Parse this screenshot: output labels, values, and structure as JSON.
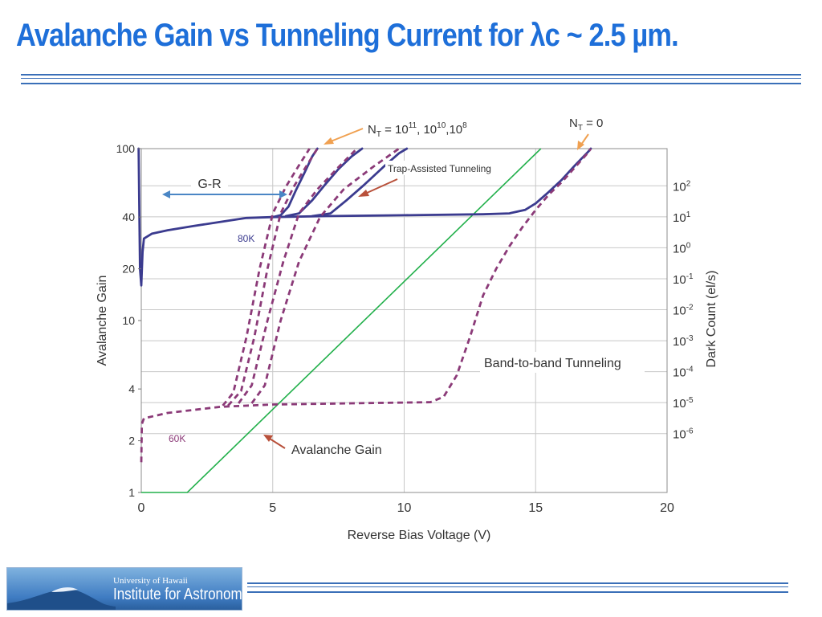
{
  "slide": {
    "title": "Avalanche Gain vs Tunneling Current for λc ~ 2.5 µm.",
    "logo": {
      "line1": "University of Hawaii",
      "line2": "Institute for Astronomy"
    }
  },
  "colors": {
    "title": "#1e6fd9",
    "curve_80k": "#3b3b8f",
    "curve_60k": "#8b3a78",
    "tunneling_line": "#22b04b",
    "arrow_blue": "#4a86c5",
    "arrow_orange": "#f0a050",
    "arrow_red": "#b8503a"
  },
  "chart_data": {
    "type": "line",
    "xlabel": "Reverse Bias Voltage (V)",
    "ylabel": "Avalanche Gain",
    "y2label": "Dark Count (el/s)",
    "xlim": [
      0,
      20
    ],
    "ylim": [
      1,
      100
    ],
    "yscale": "log",
    "y2lim": [
      -7.9,
      3.2
    ],
    "y2scale": "log",
    "grid": true,
    "xticks": [
      0,
      5,
      10,
      15,
      20
    ],
    "yticks": [
      1,
      2,
      4,
      10,
      20,
      40,
      100
    ],
    "y2ticks": [
      {
        "base": "10",
        "exp": "-6",
        "value": -6
      },
      {
        "base": "10",
        "exp": "-5",
        "value": -5
      },
      {
        "base": "10",
        "exp": "-4",
        "value": -4
      },
      {
        "base": "10",
        "exp": "-3",
        "value": -3
      },
      {
        "base": "10",
        "exp": "-2",
        "value": -2
      },
      {
        "base": "10",
        "exp": "-1",
        "value": -1
      },
      {
        "base": "10",
        "exp": "0",
        "value": 0
      },
      {
        "base": "10",
        "exp": "1",
        "value": 1
      },
      {
        "base": "10",
        "exp": "2",
        "value": 2
      }
    ],
    "series": [
      {
        "id": "80k-nt0",
        "style": "solid",
        "color": "#3b3b8f",
        "points": [
          [
            -0.1,
            100
          ],
          [
            -0.05,
            20
          ],
          [
            0,
            16
          ],
          [
            0.05,
            25
          ],
          [
            0.1,
            30
          ],
          [
            0.4,
            32
          ],
          [
            1,
            33.5
          ],
          [
            2,
            35.5
          ],
          [
            3,
            37.5
          ],
          [
            4,
            39.5
          ],
          [
            5,
            40
          ],
          [
            7,
            40.5
          ],
          [
            10,
            41
          ],
          [
            13,
            41.5
          ],
          [
            14,
            42
          ],
          [
            14.6,
            44
          ],
          [
            15,
            48
          ],
          [
            15.5,
            56
          ],
          [
            16,
            66
          ],
          [
            16.5,
            80
          ],
          [
            17,
            96
          ],
          [
            17.1,
            100
          ]
        ]
      },
      {
        "id": "80k-nt11",
        "style": "solid",
        "color": "#3b3b8f",
        "points": [
          [
            5,
            40
          ],
          [
            5.3,
            41
          ],
          [
            5.6,
            46
          ],
          [
            5.9,
            58
          ],
          [
            6.2,
            72
          ],
          [
            6.5,
            90
          ],
          [
            6.7,
            100
          ]
        ]
      },
      {
        "id": "80k-nt10",
        "style": "solid",
        "color": "#3b3b8f",
        "points": [
          [
            5.5,
            40.5
          ],
          [
            6,
            42
          ],
          [
            6.5,
            50
          ],
          [
            7,
            62
          ],
          [
            7.5,
            76
          ],
          [
            8,
            90
          ],
          [
            8.4,
            100
          ]
        ]
      },
      {
        "id": "80k-nt8",
        "style": "solid",
        "color": "#3b3b8f",
        "points": [
          [
            6.5,
            40.5
          ],
          [
            7.2,
            42
          ],
          [
            7.8,
            50
          ],
          [
            8.5,
            62
          ],
          [
            9.2,
            78
          ],
          [
            9.8,
            94
          ],
          [
            10.1,
            100
          ]
        ]
      },
      {
        "id": "60k-nt0",
        "style": "dashed",
        "color": "#8b3a78",
        "points": [
          [
            0,
            1.5
          ],
          [
            0.02,
            2.5
          ],
          [
            0.1,
            2.7
          ],
          [
            1,
            2.9
          ],
          [
            3,
            3.15
          ],
          [
            5,
            3.25
          ],
          [
            8,
            3.3
          ],
          [
            11,
            3.35
          ],
          [
            11.5,
            3.6
          ],
          [
            12,
            4.8
          ],
          [
            12.5,
            8
          ],
          [
            13,
            14
          ],
          [
            13.5,
            20
          ],
          [
            14,
            27
          ],
          [
            14.5,
            35
          ],
          [
            15,
            44
          ],
          [
            15.5,
            54
          ],
          [
            16,
            64
          ],
          [
            16.5,
            78
          ],
          [
            17,
            95
          ],
          [
            17.1,
            100
          ]
        ]
      },
      {
        "id": "60k-nt11-a",
        "style": "dashed",
        "color": "#8b3a78",
        "points": [
          [
            3.1,
            3.2
          ],
          [
            3.5,
            3.8
          ],
          [
            4,
            8
          ],
          [
            4.5,
            20
          ],
          [
            5,
            42
          ],
          [
            5.5,
            60
          ],
          [
            6,
            80
          ],
          [
            6.4,
            100
          ]
        ]
      },
      {
        "id": "60k-nt11-b",
        "style": "dashed",
        "color": "#8b3a78",
        "points": [
          [
            3.3,
            3.2
          ],
          [
            3.8,
            3.9
          ],
          [
            4.3,
            8
          ],
          [
            4.8,
            20
          ],
          [
            5.3,
            42
          ],
          [
            5.8,
            60
          ],
          [
            6.3,
            80
          ],
          [
            6.7,
            100
          ]
        ]
      },
      {
        "id": "60k-nt10",
        "style": "dashed",
        "color": "#8b3a78",
        "points": [
          [
            3.7,
            3.3
          ],
          [
            4.2,
            4.2
          ],
          [
            4.8,
            10
          ],
          [
            5.4,
            22
          ],
          [
            6,
            42
          ],
          [
            6.7,
            58
          ],
          [
            7.5,
            78
          ],
          [
            8.2,
            100
          ]
        ]
      },
      {
        "id": "60k-nt8",
        "style": "dashed",
        "color": "#8b3a78",
        "points": [
          [
            4.2,
            3.3
          ],
          [
            4.7,
            4.2
          ],
          [
            5.3,
            10
          ],
          [
            6,
            22
          ],
          [
            6.8,
            40
          ],
          [
            7.7,
            58
          ],
          [
            8.8,
            78
          ],
          [
            9.8,
            100
          ]
        ]
      }
    ],
    "tunneling_line": {
      "color": "#22b04b",
      "axis": "y2",
      "points": [
        [
          0,
          -7.9
        ],
        [
          1.75,
          -7.9
        ],
        [
          15.2,
          3.2
        ]
      ]
    },
    "annotations": {
      "gr": "G-R",
      "label_80k": "80K",
      "label_60k": "60K",
      "trap": "Trap-Assisted Tunneling",
      "band": "Band-to-band Tunneling",
      "gain": "Avalanche Gain",
      "nt_sym": "N",
      "nt_sub": "T",
      "nt_eq": " = 10",
      "nt_e1": "11",
      "nt_c1": ", 10",
      "nt_e2": "10",
      "nt_c2": ",10",
      "nt_e3": "8",
      "nt0_eq": " = 0"
    }
  }
}
